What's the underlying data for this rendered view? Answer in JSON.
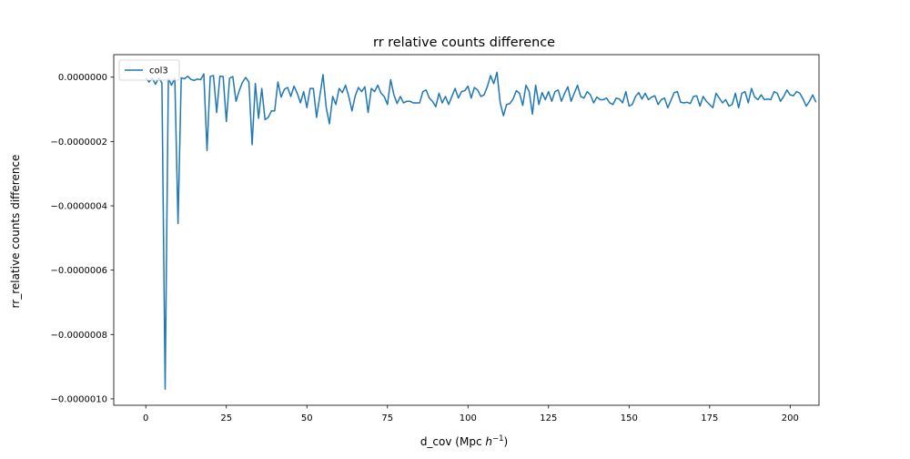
{
  "chart_data": {
    "type": "line",
    "title": "rr relative counts difference",
    "xlabel": "d_cov (Mpc h⁻¹)",
    "ylabel": "rr_relative counts difference",
    "xlim": [
      -9.95,
      208.95
    ],
    "ylim": [
      -1.02e-06,
      7e-08
    ],
    "xticks": [
      0,
      25,
      50,
      75,
      100,
      125,
      150,
      175,
      200
    ],
    "xtick_labels": [
      "0",
      "25",
      "50",
      "75",
      "100",
      "125",
      "150",
      "175",
      "200"
    ],
    "yticks": [
      0,
      -2e-07,
      -4e-07,
      -6e-07,
      -8e-07,
      -1e-06
    ],
    "ytick_labels": [
      "0.0000000",
      "−0.0000002",
      "−0.0000004",
      "−0.0000006",
      "−0.0000008",
      "−0.0000010"
    ],
    "grid": false,
    "legend": {
      "position": "top-left",
      "entries": [
        "col3"
      ]
    },
    "series": [
      {
        "name": "col3",
        "color": "#1f77b4",
        "x_start": 0,
        "x_step": 1,
        "values": [
          -2e-09,
          -1.5e-08,
          -3e-09,
          -2.2e-08,
          -2e-09,
          -1.8e-08,
          -9.7e-07,
          -4e-09,
          -2.5e-08,
          -3e-09,
          -4.55e-07,
          -2e-09,
          -5e-09,
          3e-09,
          -7e-09,
          -1e-08,
          -6e-09,
          -8e-09,
          1e-08,
          -2.28e-07,
          2e-09,
          5e-09,
          -1.1e-07,
          3e-09,
          2e-09,
          -1.38e-07,
          -3e-09,
          2e-09,
          -7.5e-08,
          -4.2e-08,
          -1.6e-08,
          -1e-09,
          -1.5e-08,
          -2.1e-07,
          -2e-08,
          -1.28e-07,
          -3.5e-08,
          -1.32e-07,
          -1.25e-07,
          -1.05e-07,
          -1.05e-07,
          -1.5e-08,
          -6.2e-08,
          -3.8e-08,
          -3.2e-08,
          -6e-08,
          -2.8e-08,
          -5e-08,
          -8e-08,
          -4.5e-08,
          -9.5e-08,
          -3.5e-08,
          -3.5e-08,
          -1.25e-07,
          -6e-08,
          8e-09,
          -9.5e-08,
          -1.45e-07,
          -6e-08,
          -8.5e-08,
          -3.5e-08,
          -4.8e-08,
          -2.5e-08,
          -6e-08,
          -1.05e-07,
          -5.8e-08,
          -3.2e-08,
          -4.5e-08,
          -3e-08,
          -1.1e-07,
          -3.5e-08,
          -4.5e-08,
          -2.5e-08,
          -5e-08,
          -6e-08,
          -8.5e-08,
          -8e-09,
          -5.5e-08,
          -8.2e-08,
          -6e-08,
          -8e-08,
          -7.5e-08,
          -7.5e-08,
          -8e-08,
          -8e-08,
          -8e-08,
          -4.5e-08,
          -4e-08,
          -6.5e-08,
          -7.5e-08,
          -9.2e-08,
          -5e-08,
          -8e-08,
          -6e-08,
          -8.5e-08,
          -6e-08,
          -3.5e-08,
          -6.5e-08,
          -4.5e-08,
          -4.2e-08,
          -2.8e-08,
          -6.5e-08,
          -3.2e-08,
          -4e-08,
          -6e-08,
          -5.5e-08,
          -3e-08,
          5e-09,
          -2e-08,
          1.5e-08,
          -8e-08,
          -1.2e-07,
          -8.5e-08,
          -8.2e-08,
          -6.8e-08,
          -4.2e-08,
          -5e-08,
          -8.8e-08,
          -2.5e-08,
          -4.5e-08,
          -1.15e-07,
          -2.5e-08,
          -8.5e-08,
          -4.8e-08,
          -7e-08,
          -4.5e-08,
          -7.5e-08,
          -4.5e-08,
          -4e-08,
          -7.5e-08,
          -5e-08,
          -3e-08,
          -7.5e-08,
          -5e-08,
          -2.5e-08,
          -6e-08,
          -6.5e-08,
          -4.5e-08,
          -5.5e-08,
          -8e-08,
          -6.2e-08,
          -7e-08,
          -7e-08,
          -6.5e-08,
          -8e-08,
          -8.5e-08,
          -6.5e-08,
          -6.8e-08,
          -8e-08,
          -4.5e-08,
          -9e-08,
          -8.5e-08,
          -6e-08,
          -4.8e-08,
          -6.8e-08,
          -5e-08,
          -7e-08,
          -6.2e-08,
          -5.8e-08,
          -8.5e-08,
          -7e-08,
          -6.5e-08,
          -9.5e-08,
          -7.2e-08,
          -4.8e-08,
          -4.5e-08,
          -7.8e-08,
          -8e-08,
          -7.8e-08,
          -8.2e-08,
          -6e-08,
          -5.8e-08,
          -9e-08,
          -6e-08,
          -7.5e-08,
          -8.5e-08,
          -9.5e-08,
          -5e-08,
          -6.5e-08,
          -8e-08,
          -7e-08,
          -9e-08,
          -8.5e-08,
          -5e-08,
          -9.5e-08,
          -5e-08,
          -4.5e-08,
          -8e-08,
          -3.5e-08,
          -6.2e-08,
          -7e-08,
          -5.5e-08,
          -7e-08,
          -6.8e-08,
          -7e-08,
          -4.5e-08,
          -5e-08,
          -7.5e-08,
          -6e-08,
          -4e-08,
          -5.5e-08,
          -5.8e-08,
          -4.5e-08,
          -5e-08,
          -6.8e-08,
          -9e-08,
          -7.5e-08,
          -5.5e-08,
          -7.8e-08
        ]
      }
    ]
  }
}
